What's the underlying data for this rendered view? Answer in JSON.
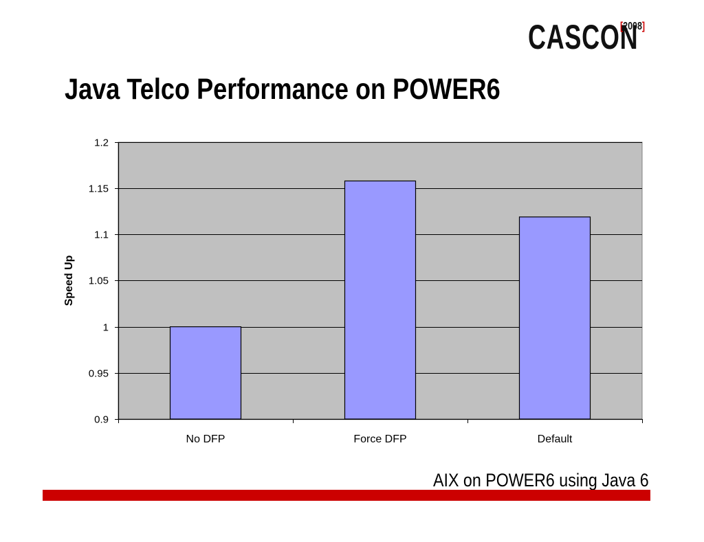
{
  "header": {
    "logo_text": "CASCON",
    "logo_year_open": "[",
    "logo_year": "2008",
    "logo_year_close": "]",
    "title": "Java Telco Performance on POWER6"
  },
  "footer": {
    "caption": "AIX on POWER6 using Java 6",
    "bar_color": "#cc0000"
  },
  "chart_data": {
    "type": "bar",
    "categories": [
      "No DFP",
      "Force DFP",
      "Default"
    ],
    "values": [
      1.0,
      1.158,
      1.119
    ],
    "xlabel": "",
    "ylabel": "Speed Up",
    "ylim": [
      0.9,
      1.2
    ],
    "yticks": [
      "0.9",
      "0.95",
      "1",
      "1.05",
      "1.1",
      "1.15",
      "1.2"
    ],
    "grid": true,
    "legend": "none",
    "colors": {
      "bar": "#9999ff",
      "plot_background": "#c0c0c0",
      "gridline": "#000000"
    }
  }
}
